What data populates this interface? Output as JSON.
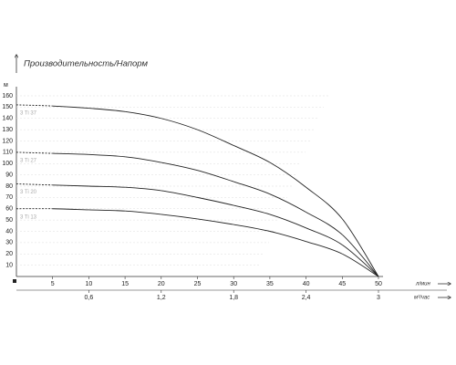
{
  "chart_data": {
    "type": "line",
    "title": "Производительность/Напорм",
    "y_unit": "м",
    "x_unit": "л/мин",
    "x2_unit": "м³/час",
    "x": [
      0,
      5,
      10,
      15,
      20,
      25,
      30,
      35,
      40,
      45,
      50
    ],
    "series": [
      {
        "name": "3 Ti 37",
        "color": "#222222",
        "values": [
          152,
          151,
          149,
          146,
          140,
          130,
          116,
          101,
          79,
          51,
          0
        ]
      },
      {
        "name": "3 Ti 27",
        "color": "#222222",
        "values": [
          110,
          109,
          108,
          106,
          101,
          94,
          84,
          73,
          57,
          37,
          0
        ]
      },
      {
        "name": "3 Ti 20",
        "color": "#222222",
        "values": [
          82,
          81,
          80,
          79,
          76,
          70,
          63,
          55,
          43,
          28,
          0
        ]
      },
      {
        "name": "3 Ti 13",
        "color": "#222222",
        "values": [
          60,
          60,
          59,
          58,
          55,
          51,
          46,
          40,
          31,
          20,
          0
        ]
      }
    ],
    "xlim": [
      0,
      50
    ],
    "xticks": [
      5,
      10,
      15,
      20,
      25,
      30,
      35,
      40,
      45,
      50
    ],
    "x2lim": [
      0,
      3
    ],
    "x2ticks": [
      {
        "value": 0.6,
        "label": "0,6"
      },
      {
        "value": 1.2,
        "label": "1,2"
      },
      {
        "value": 1.8,
        "label": "1,8"
      },
      {
        "value": 2.4,
        "label": "2,4"
      },
      3
    ],
    "ylim": [
      0,
      160
    ],
    "yticks": [
      10,
      20,
      30,
      40,
      50,
      60,
      70,
      80,
      90,
      100,
      110,
      120,
      130,
      140,
      150,
      160
    ],
    "grid": true
  }
}
